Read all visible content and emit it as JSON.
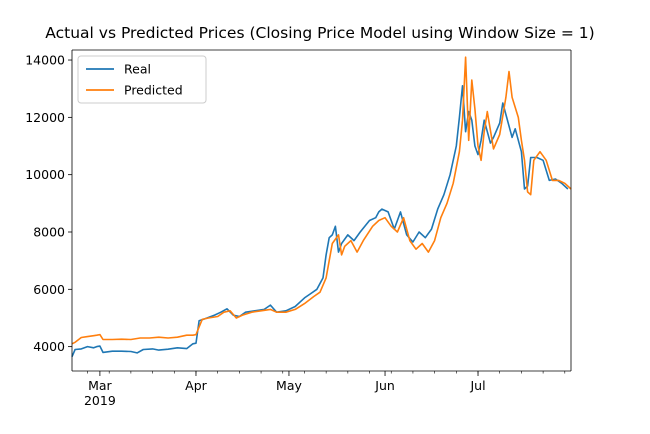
{
  "chart_data": {
    "type": "line",
    "title": "Actual vs Predicted Prices (Closing Price Model using Window Size = 1)",
    "xlabel": "",
    "ylabel": "",
    "x_range": [
      "2019-02-20",
      "2019-07-31"
    ],
    "ylim": [
      3150,
      14350
    ],
    "y_ticks": [
      4000,
      6000,
      8000,
      10000,
      12000,
      14000
    ],
    "y_tick_labels": [
      "4000",
      "6000",
      "8000",
      "10000",
      "12000",
      "14000"
    ],
    "x_major_ticks": [
      {
        "date": "2019-03-01",
        "label": "Mar",
        "sublabel": "2019"
      },
      {
        "date": "2019-04-01",
        "label": "Apr",
        "sublabel": ""
      },
      {
        "date": "2019-05-01",
        "label": "May",
        "sublabel": ""
      },
      {
        "date": "2019-06-01",
        "label": "Jun",
        "sublabel": ""
      },
      {
        "date": "2019-07-01",
        "label": "Jul",
        "sublabel": ""
      }
    ],
    "grid": false,
    "legend": {
      "position": "top-left"
    },
    "series": [
      {
        "name": "Real",
        "color": "#1f77b4",
        "points": [
          [
            "2019-02-20",
            3650
          ],
          [
            "2019-02-21",
            3900
          ],
          [
            "2019-02-23",
            3920
          ],
          [
            "2019-02-25",
            4000
          ],
          [
            "2019-02-27",
            3960
          ],
          [
            "2019-02-28",
            4000
          ],
          [
            "2019-03-01",
            4020
          ],
          [
            "2019-03-02",
            3800
          ],
          [
            "2019-03-05",
            3840
          ],
          [
            "2019-03-08",
            3840
          ],
          [
            "2019-03-11",
            3830
          ],
          [
            "2019-03-13",
            3780
          ],
          [
            "2019-03-15",
            3900
          ],
          [
            "2019-03-18",
            3920
          ],
          [
            "2019-03-20",
            3880
          ],
          [
            "2019-03-23",
            3910
          ],
          [
            "2019-03-26",
            3960
          ],
          [
            "2019-03-29",
            3930
          ],
          [
            "2019-03-31",
            4100
          ],
          [
            "2019-04-01",
            4120
          ],
          [
            "2019-04-02",
            4900
          ],
          [
            "2019-04-04",
            4980
          ],
          [
            "2019-04-07",
            5100
          ],
          [
            "2019-04-09",
            5200
          ],
          [
            "2019-04-11",
            5320
          ],
          [
            "2019-04-13",
            5100
          ],
          [
            "2019-04-15",
            5050
          ],
          [
            "2019-04-17",
            5200
          ],
          [
            "2019-04-20",
            5250
          ],
          [
            "2019-04-23",
            5300
          ],
          [
            "2019-04-25",
            5450
          ],
          [
            "2019-04-27",
            5200
          ],
          [
            "2019-04-30",
            5250
          ],
          [
            "2019-05-03",
            5400
          ],
          [
            "2019-05-06",
            5700
          ],
          [
            "2019-05-08",
            5850
          ],
          [
            "2019-05-10",
            6000
          ],
          [
            "2019-05-12",
            6400
          ],
          [
            "2019-05-13",
            7200
          ],
          [
            "2019-05-14",
            7800
          ],
          [
            "2019-05-15",
            7900
          ],
          [
            "2019-05-16",
            8200
          ],
          [
            "2019-05-17",
            7300
          ],
          [
            "2019-05-18",
            7600
          ],
          [
            "2019-05-20",
            7900
          ],
          [
            "2019-05-22",
            7700
          ],
          [
            "2019-05-24",
            8000
          ],
          [
            "2019-05-27",
            8400
          ],
          [
            "2019-05-29",
            8500
          ],
          [
            "2019-05-30",
            8700
          ],
          [
            "2019-05-31",
            8800
          ],
          [
            "2019-06-02",
            8700
          ],
          [
            "2019-06-04",
            8100
          ],
          [
            "2019-06-06",
            8700
          ],
          [
            "2019-06-08",
            7900
          ],
          [
            "2019-06-10",
            7650
          ],
          [
            "2019-06-12",
            8000
          ],
          [
            "2019-06-14",
            7800
          ],
          [
            "2019-06-16",
            8100
          ],
          [
            "2019-06-18",
            8800
          ],
          [
            "2019-06-20",
            9300
          ],
          [
            "2019-06-22",
            10000
          ],
          [
            "2019-06-24",
            11000
          ],
          [
            "2019-06-25",
            12000
          ],
          [
            "2019-06-26",
            13100
          ],
          [
            "2019-06-27",
            11500
          ],
          [
            "2019-06-28",
            12200
          ],
          [
            "2019-06-29",
            11900
          ],
          [
            "2019-06-30",
            11000
          ],
          [
            "2019-07-01",
            10700
          ],
          [
            "2019-07-02",
            11200
          ],
          [
            "2019-07-03",
            11900
          ],
          [
            "2019-07-05",
            11100
          ],
          [
            "2019-07-06",
            11300
          ],
          [
            "2019-07-08",
            11800
          ],
          [
            "2019-07-09",
            12500
          ],
          [
            "2019-07-10",
            12100
          ],
          [
            "2019-07-12",
            11300
          ],
          [
            "2019-07-13",
            11600
          ],
          [
            "2019-07-15",
            10800
          ],
          [
            "2019-07-16",
            9500
          ],
          [
            "2019-07-17",
            9600
          ],
          [
            "2019-07-18",
            10600
          ],
          [
            "2019-07-20",
            10600
          ],
          [
            "2019-07-22",
            10500
          ],
          [
            "2019-07-24",
            9800
          ],
          [
            "2019-07-26",
            9850
          ],
          [
            "2019-07-28",
            9700
          ],
          [
            "2019-07-30",
            9500
          ]
        ]
      },
      {
        "name": "Predicted",
        "color": "#ff7f0e",
        "points": [
          [
            "2019-02-20",
            4100
          ],
          [
            "2019-02-21",
            4150
          ],
          [
            "2019-02-23",
            4320
          ],
          [
            "2019-02-25",
            4350
          ],
          [
            "2019-02-27",
            4380
          ],
          [
            "2019-02-28",
            4400
          ],
          [
            "2019-03-01",
            4420
          ],
          [
            "2019-03-02",
            4250
          ],
          [
            "2019-03-05",
            4250
          ],
          [
            "2019-03-08",
            4260
          ],
          [
            "2019-03-11",
            4250
          ],
          [
            "2019-03-14",
            4300
          ],
          [
            "2019-03-17",
            4300
          ],
          [
            "2019-03-20",
            4330
          ],
          [
            "2019-03-23",
            4300
          ],
          [
            "2019-03-26",
            4330
          ],
          [
            "2019-03-29",
            4400
          ],
          [
            "2019-03-31",
            4400
          ],
          [
            "2019-04-01",
            4420
          ],
          [
            "2019-04-03",
            4950
          ],
          [
            "2019-04-05",
            5000
          ],
          [
            "2019-04-08",
            5050
          ],
          [
            "2019-04-10",
            5200
          ],
          [
            "2019-04-12",
            5250
          ],
          [
            "2019-04-14",
            5000
          ],
          [
            "2019-04-16",
            5100
          ],
          [
            "2019-04-19",
            5200
          ],
          [
            "2019-04-22",
            5250
          ],
          [
            "2019-04-25",
            5300
          ],
          [
            "2019-04-27",
            5200
          ],
          [
            "2019-04-30",
            5200
          ],
          [
            "2019-05-03",
            5300
          ],
          [
            "2019-05-06",
            5500
          ],
          [
            "2019-05-09",
            5750
          ],
          [
            "2019-05-11",
            5900
          ],
          [
            "2019-05-13",
            6400
          ],
          [
            "2019-05-14",
            7000
          ],
          [
            "2019-05-15",
            7600
          ],
          [
            "2019-05-17",
            7900
          ],
          [
            "2019-05-18",
            7200
          ],
          [
            "2019-05-19",
            7500
          ],
          [
            "2019-05-21",
            7700
          ],
          [
            "2019-05-23",
            7300
          ],
          [
            "2019-05-25",
            7700
          ],
          [
            "2019-05-28",
            8200
          ],
          [
            "2019-05-30",
            8400
          ],
          [
            "2019-06-01",
            8500
          ],
          [
            "2019-06-03",
            8200
          ],
          [
            "2019-06-05",
            8000
          ],
          [
            "2019-06-07",
            8500
          ],
          [
            "2019-06-09",
            7700
          ],
          [
            "2019-06-11",
            7400
          ],
          [
            "2019-06-13",
            7600
          ],
          [
            "2019-06-15",
            7300
          ],
          [
            "2019-06-17",
            7700
          ],
          [
            "2019-06-19",
            8500
          ],
          [
            "2019-06-21",
            9000
          ],
          [
            "2019-06-23",
            9700
          ],
          [
            "2019-06-25",
            10800
          ],
          [
            "2019-06-26",
            11900
          ],
          [
            "2019-06-27",
            14100
          ],
          [
            "2019-06-28",
            11200
          ],
          [
            "2019-06-29",
            13300
          ],
          [
            "2019-06-30",
            12300
          ],
          [
            "2019-07-01",
            11000
          ],
          [
            "2019-07-02",
            10500
          ],
          [
            "2019-07-03",
            11500
          ],
          [
            "2019-07-04",
            12200
          ],
          [
            "2019-07-06",
            10900
          ],
          [
            "2019-07-08",
            11400
          ],
          [
            "2019-07-10",
            12700
          ],
          [
            "2019-07-11",
            13600
          ],
          [
            "2019-07-12",
            12700
          ],
          [
            "2019-07-14",
            12000
          ],
          [
            "2019-07-15",
            11200
          ],
          [
            "2019-07-16",
            10500
          ],
          [
            "2019-07-17",
            9400
          ],
          [
            "2019-07-18",
            9300
          ],
          [
            "2019-07-19",
            10500
          ],
          [
            "2019-07-21",
            10800
          ],
          [
            "2019-07-23",
            10500
          ],
          [
            "2019-07-25",
            9800
          ],
          [
            "2019-07-27",
            9800
          ],
          [
            "2019-07-29",
            9700
          ],
          [
            "2019-07-31",
            9500
          ]
        ]
      }
    ]
  }
}
